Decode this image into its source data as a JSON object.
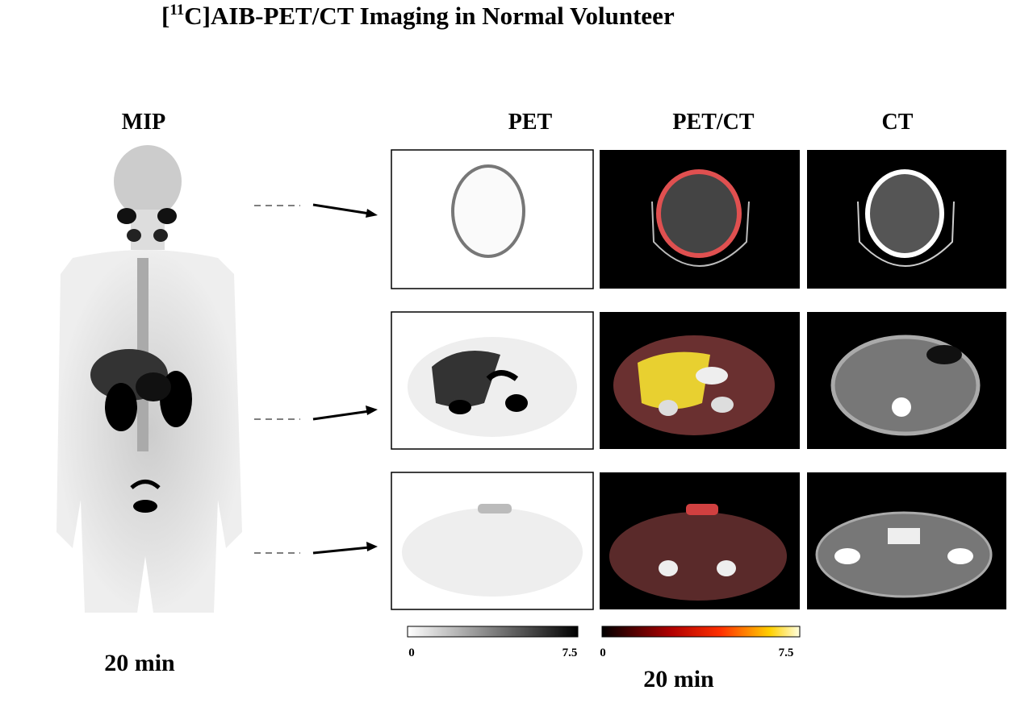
{
  "header": {
    "title_open": "[",
    "title_sup": "11",
    "title_rest": "C]AIB-PET/CT Imaging in Normal Volunteer"
  },
  "mip": {
    "label": "MIP",
    "time": "20 min"
  },
  "columns": [
    "PET",
    "PET/CT",
    "CT"
  ],
  "colorbars": [
    {
      "min": 0,
      "max": 7.5
    },
    {
      "min": 0,
      "max": 7.5
    }
  ],
  "time": "20 min"
}
